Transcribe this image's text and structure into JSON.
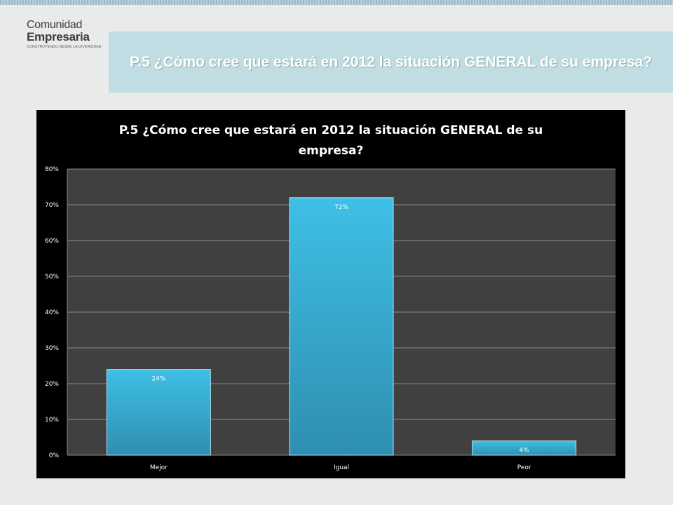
{
  "logo": {
    "line1": "Comunidad",
    "line2": "Empresaria",
    "tagline": "CONSTRUYENDO DESDE LA DIVERSIDAD"
  },
  "slide": {
    "title": "P.5 ¿Cómo cree que estará en 2012 la situación GENERAL de su empresa?"
  },
  "colors": {
    "bar": "#3fbfe6",
    "bar_dark": "#2e8fb0",
    "plot_bg": "#404040",
    "chart_bg": "#000000",
    "title_box": "#bfdde2"
  },
  "chart_data": {
    "type": "bar",
    "title_line1": "P.5 ¿Cómo cree que estará en 2012 la situación GENERAL de su",
    "title_line2": "empresa?",
    "categories": [
      "Mejor",
      "Igual",
      "Peor"
    ],
    "values": [
      24,
      72,
      4
    ],
    "data_labels": [
      "24%",
      "72%",
      "4%"
    ],
    "ylim": [
      0,
      80
    ],
    "yticks": [
      0,
      10,
      20,
      30,
      40,
      50,
      60,
      70,
      80
    ],
    "ytick_labels": [
      "0%",
      "10%",
      "20%",
      "30%",
      "40%",
      "50%",
      "60%",
      "70%",
      "80%"
    ],
    "grid": true,
    "legend": "none"
  }
}
